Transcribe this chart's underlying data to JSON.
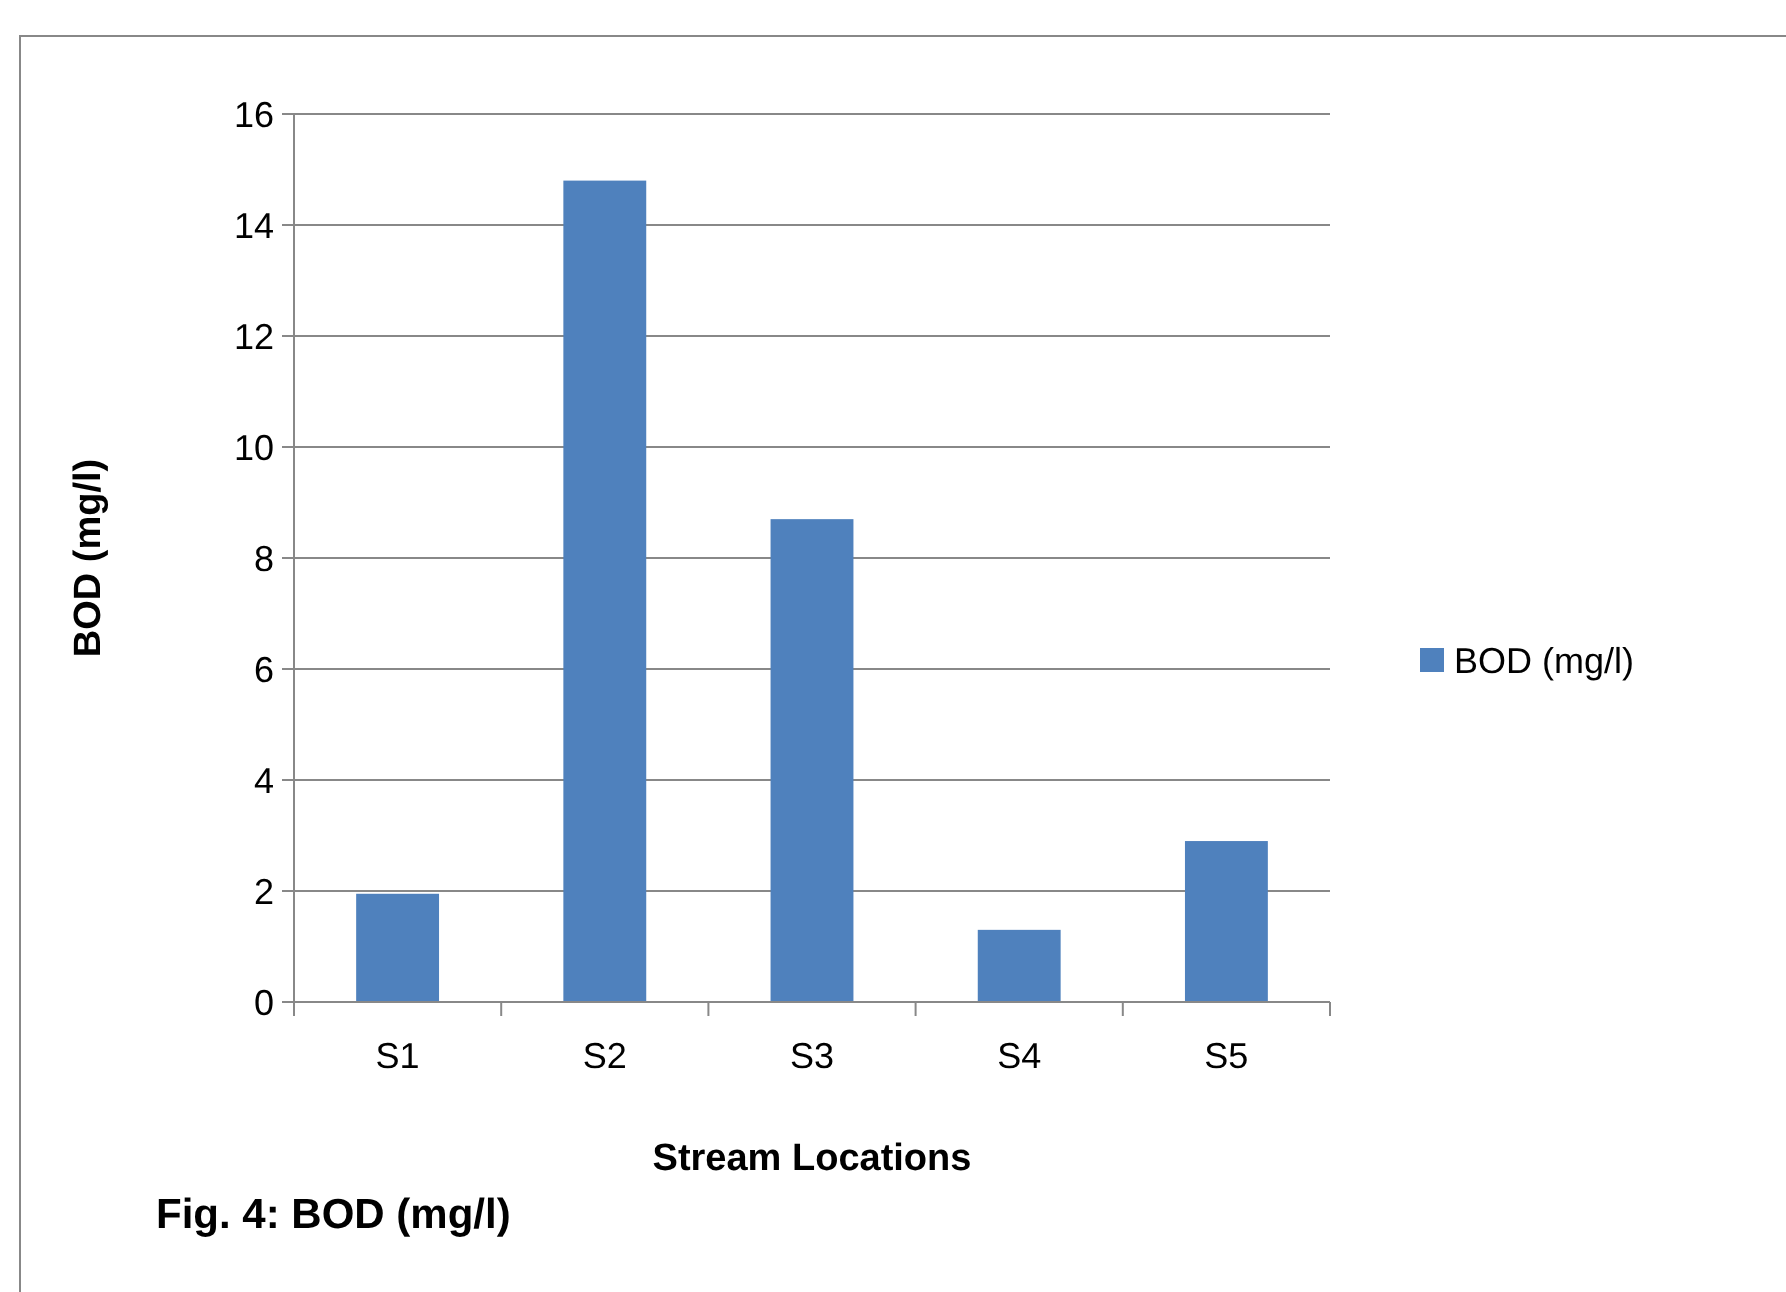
{
  "chart_data": {
    "type": "bar",
    "title": "Fig. 4: BOD (mg/l)",
    "xlabel": "Stream Locations",
    "ylabel": "BOD (mg/l)",
    "categories": [
      "S1",
      "S2",
      "S3",
      "S4",
      "S5"
    ],
    "series": [
      {
        "name": "BOD (mg/l)",
        "color": "#4f81bd",
        "values": [
          1.95,
          14.8,
          8.7,
          1.3,
          2.9
        ]
      }
    ],
    "ylim": [
      0,
      16
    ],
    "yticks": [
      0,
      2,
      4,
      6,
      8,
      10,
      12,
      14,
      16
    ],
    "grid": "y",
    "legend": "right"
  }
}
